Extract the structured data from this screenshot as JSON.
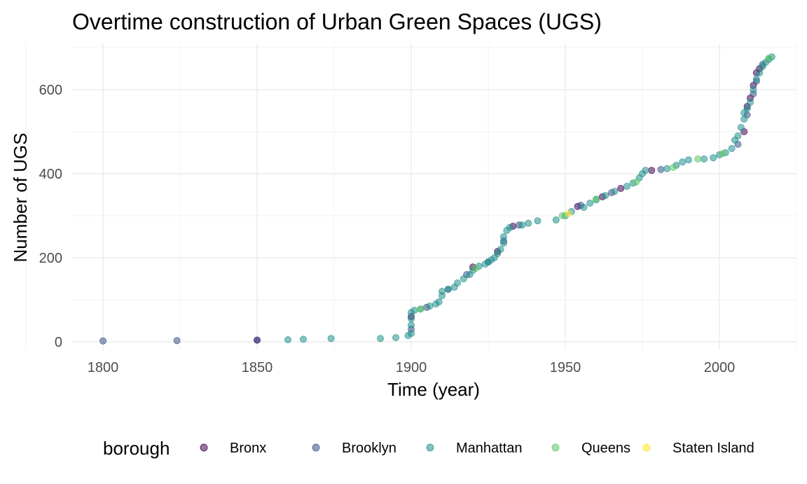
{
  "chart_data": {
    "type": "scatter",
    "title": "Overtime construction of Urban Green Spaces (UGS)",
    "xlabel": "Time (year)",
    "ylabel": "Number of UGS",
    "xlim": [
      1790,
      2025
    ],
    "ylim": [
      -20,
      710
    ],
    "xticks": [
      1800,
      1850,
      1900,
      1950,
      2000
    ],
    "yticks": [
      0,
      200,
      400,
      600
    ],
    "grid": true,
    "legend": {
      "title": "borough",
      "position": "bottom",
      "entries": [
        {
          "name": "Bronx",
          "color": "#440154"
        },
        {
          "name": "Brooklyn",
          "color": "#3B528B"
        },
        {
          "name": "Manhattan",
          "color": "#21908C"
        },
        {
          "name": "Queens",
          "color": "#5DC863"
        },
        {
          "name": "Staten Island",
          "color": "#FDE725"
        }
      ]
    },
    "series": [
      {
        "name": "Bronx",
        "color": "#440154",
        "points": [
          [
            1850,
            4
          ],
          [
            1900,
            60
          ],
          [
            1920,
            178
          ],
          [
            1928,
            215
          ],
          [
            1933,
            275
          ],
          [
            1954,
            322
          ],
          [
            1962,
            345
          ],
          [
            1968,
            365
          ],
          [
            1978,
            408
          ],
          [
            2008,
            500
          ],
          [
            2009,
            560
          ],
          [
            2010,
            580
          ],
          [
            2011,
            610
          ],
          [
            2012,
            640
          ],
          [
            2013,
            650
          ]
        ]
      },
      {
        "name": "Brooklyn",
        "color": "#3B528B",
        "points": [
          [
            1800,
            2
          ],
          [
            1824,
            3
          ],
          [
            1850,
            4
          ],
          [
            1900,
            30
          ],
          [
            1905,
            82
          ],
          [
            1912,
            125
          ],
          [
            1918,
            160
          ],
          [
            1925,
            190
          ],
          [
            1930,
            240
          ],
          [
            1935,
            278
          ],
          [
            1955,
            325
          ],
          [
            1965,
            355
          ],
          [
            1981,
            410
          ],
          [
            2006,
            470
          ],
          [
            2009,
            540
          ],
          [
            2011,
            590
          ],
          [
            2012,
            620
          ],
          [
            2014,
            660
          ]
        ]
      },
      {
        "name": "Manhattan",
        "color": "#21908C",
        "points": [
          [
            1860,
            5
          ],
          [
            1865,
            6
          ],
          [
            1874,
            8
          ],
          [
            1890,
            8
          ],
          [
            1895,
            10
          ],
          [
            1899,
            15
          ],
          [
            1900,
            20
          ],
          [
            1900,
            40
          ],
          [
            1900,
            55
          ],
          [
            1900,
            70
          ],
          [
            1901,
            75
          ],
          [
            1903,
            78
          ],
          [
            1906,
            85
          ],
          [
            1908,
            90
          ],
          [
            1909,
            95
          ],
          [
            1910,
            110
          ],
          [
            1910,
            120
          ],
          [
            1912,
            125
          ],
          [
            1914,
            130
          ],
          [
            1915,
            140
          ],
          [
            1917,
            150
          ],
          [
            1919,
            160
          ],
          [
            1920,
            170
          ],
          [
            1922,
            180
          ],
          [
            1924,
            185
          ],
          [
            1925,
            190
          ],
          [
            1926,
            195
          ],
          [
            1927,
            200
          ],
          [
            1928,
            210
          ],
          [
            1929,
            220
          ],
          [
            1930,
            235
          ],
          [
            1930,
            250
          ],
          [
            1931,
            265
          ],
          [
            1932,
            272
          ],
          [
            1936,
            278
          ],
          [
            1938,
            282
          ],
          [
            1941,
            288
          ],
          [
            1947,
            290
          ],
          [
            1950,
            300
          ],
          [
            1952,
            310
          ],
          [
            1956,
            320
          ],
          [
            1958,
            330
          ],
          [
            1960,
            338
          ],
          [
            1963,
            348
          ],
          [
            1966,
            358
          ],
          [
            1970,
            370
          ],
          [
            1972,
            378
          ],
          [
            1974,
            390
          ],
          [
            1975,
            400
          ],
          [
            1976,
            408
          ],
          [
            1983,
            412
          ],
          [
            1986,
            420
          ],
          [
            1988,
            428
          ],
          [
            1990,
            433
          ],
          [
            1995,
            435
          ],
          [
            1998,
            438
          ],
          [
            2000,
            445
          ],
          [
            2002,
            450
          ],
          [
            2004,
            460
          ],
          [
            2005,
            480
          ],
          [
            2006,
            490
          ],
          [
            2007,
            510
          ],
          [
            2008,
            530
          ],
          [
            2008,
            545
          ],
          [
            2009,
            555
          ],
          [
            2010,
            570
          ],
          [
            2011,
            600
          ],
          [
            2012,
            625
          ],
          [
            2013,
            640
          ],
          [
            2014,
            655
          ],
          [
            2015,
            665
          ],
          [
            2016,
            672
          ],
          [
            2017,
            678
          ]
        ]
      },
      {
        "name": "Queens",
        "color": "#5DC863",
        "points": [
          [
            1903,
            78
          ],
          [
            1921,
            175
          ],
          [
            1949,
            300
          ],
          [
            1960,
            340
          ],
          [
            1973,
            380
          ],
          [
            1985,
            415
          ],
          [
            1993,
            435
          ],
          [
            2001,
            448
          ],
          [
            2016,
            675
          ]
        ]
      },
      {
        "name": "Staten Island",
        "color": "#FDE725",
        "points": [
          [
            1951,
            305
          ]
        ]
      }
    ]
  }
}
